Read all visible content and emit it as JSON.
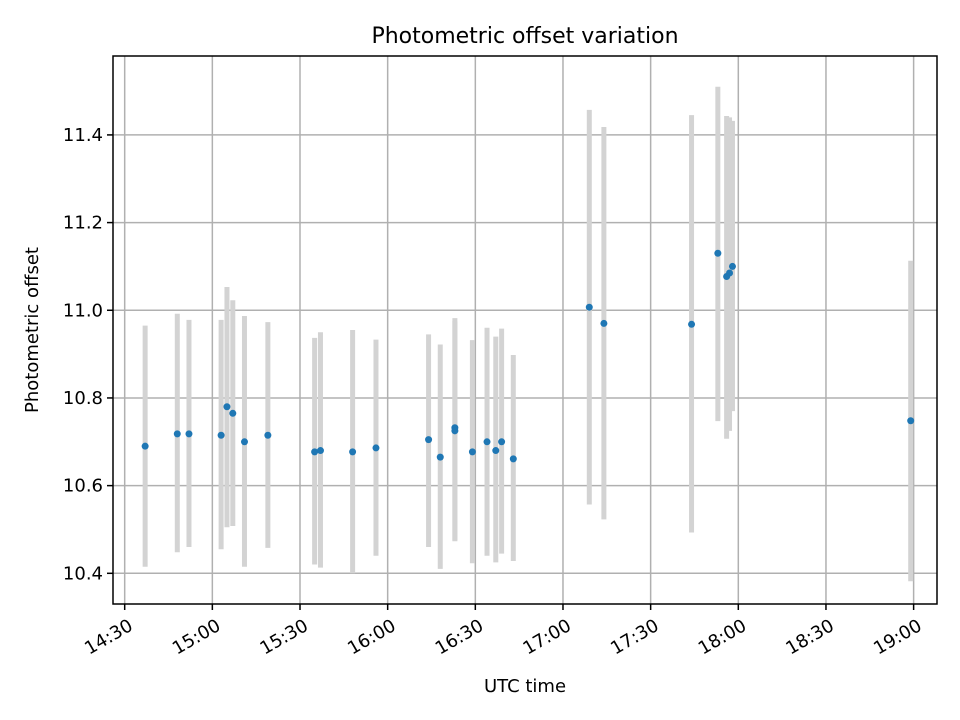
{
  "chart_data": {
    "type": "scatter",
    "title": "Photometric offset variation",
    "xlabel": "UTC time",
    "ylabel": "Photometric offset",
    "grid": true,
    "legend": "none",
    "colors": {
      "points": "#1f77b4",
      "errorbars": "#d3d3d3",
      "grid": "#b0b0b0"
    },
    "xlim": [
      "14:26",
      "19:08"
    ],
    "ylim": [
      10.33,
      11.58
    ],
    "x_ticks": [
      "14:30",
      "15:00",
      "15:30",
      "16:00",
      "16:30",
      "17:00",
      "17:30",
      "18:00",
      "18:30",
      "19:00"
    ],
    "y_ticks": [
      "10.4",
      "10.6",
      "10.8",
      "11.0",
      "11.2",
      "11.4"
    ],
    "points": [
      {
        "x": "14:37",
        "y": 10.69,
        "ylo": 10.415,
        "yhi": 10.965
      },
      {
        "x": "14:48",
        "y": 10.718,
        "ylo": 10.448,
        "yhi": 10.992
      },
      {
        "x": "14:52",
        "y": 10.718,
        "ylo": 10.46,
        "yhi": 10.978
      },
      {
        "x": "15:03",
        "y": 10.715,
        "ylo": 10.455,
        "yhi": 10.978
      },
      {
        "x": "15:05",
        "y": 10.78,
        "ylo": 10.505,
        "yhi": 11.053
      },
      {
        "x": "15:07",
        "y": 10.765,
        "ylo": 10.508,
        "yhi": 11.023
      },
      {
        "x": "15:11",
        "y": 10.7,
        "ylo": 10.415,
        "yhi": 10.987
      },
      {
        "x": "15:19",
        "y": 10.715,
        "ylo": 10.458,
        "yhi": 10.973
      },
      {
        "x": "15:35",
        "y": 10.677,
        "ylo": 10.42,
        "yhi": 10.937
      },
      {
        "x": "15:37",
        "y": 10.68,
        "ylo": 10.413,
        "yhi": 10.95
      },
      {
        "x": "15:48",
        "y": 10.677,
        "ylo": 10.4,
        "yhi": 10.955
      },
      {
        "x": "15:56",
        "y": 10.686,
        "ylo": 10.44,
        "yhi": 10.933
      },
      {
        "x": "16:14",
        "y": 10.705,
        "ylo": 10.46,
        "yhi": 10.945
      },
      {
        "x": "16:18",
        "y": 10.665,
        "ylo": 10.41,
        "yhi": 10.922
      },
      {
        "x": "16:23",
        "y": 10.732,
        "ylo": 10.475,
        "yhi": 10.982
      },
      {
        "x": "16:23",
        "y": 10.725,
        "ylo": 10.473,
        "yhi": 10.975
      },
      {
        "x": "16:29",
        "y": 10.677,
        "ylo": 10.423,
        "yhi": 10.932
      },
      {
        "x": "16:34",
        "y": 10.7,
        "ylo": 10.44,
        "yhi": 10.96
      },
      {
        "x": "16:37",
        "y": 10.68,
        "ylo": 10.425,
        "yhi": 10.94
      },
      {
        "x": "16:39",
        "y": 10.7,
        "ylo": 10.445,
        "yhi": 10.958
      },
      {
        "x": "16:43",
        "y": 10.661,
        "ylo": 10.428,
        "yhi": 10.898
      },
      {
        "x": "17:09",
        "y": 11.007,
        "ylo": 10.557,
        "yhi": 11.457
      },
      {
        "x": "17:14",
        "y": 10.97,
        "ylo": 10.523,
        "yhi": 11.418
      },
      {
        "x": "17:44",
        "y": 10.968,
        "ylo": 10.493,
        "yhi": 11.445
      },
      {
        "x": "17:53",
        "y": 11.13,
        "ylo": 10.747,
        "yhi": 11.51
      },
      {
        "x": "17:56",
        "y": 11.077,
        "ylo": 10.707,
        "yhi": 11.443
      },
      {
        "x": "17:57",
        "y": 11.085,
        "ylo": 10.725,
        "yhi": 11.44
      },
      {
        "x": "17:58",
        "y": 11.1,
        "ylo": 10.77,
        "yhi": 11.432
      },
      {
        "x": "18:59",
        "y": 10.748,
        "ylo": 10.382,
        "yhi": 11.113
      }
    ]
  }
}
